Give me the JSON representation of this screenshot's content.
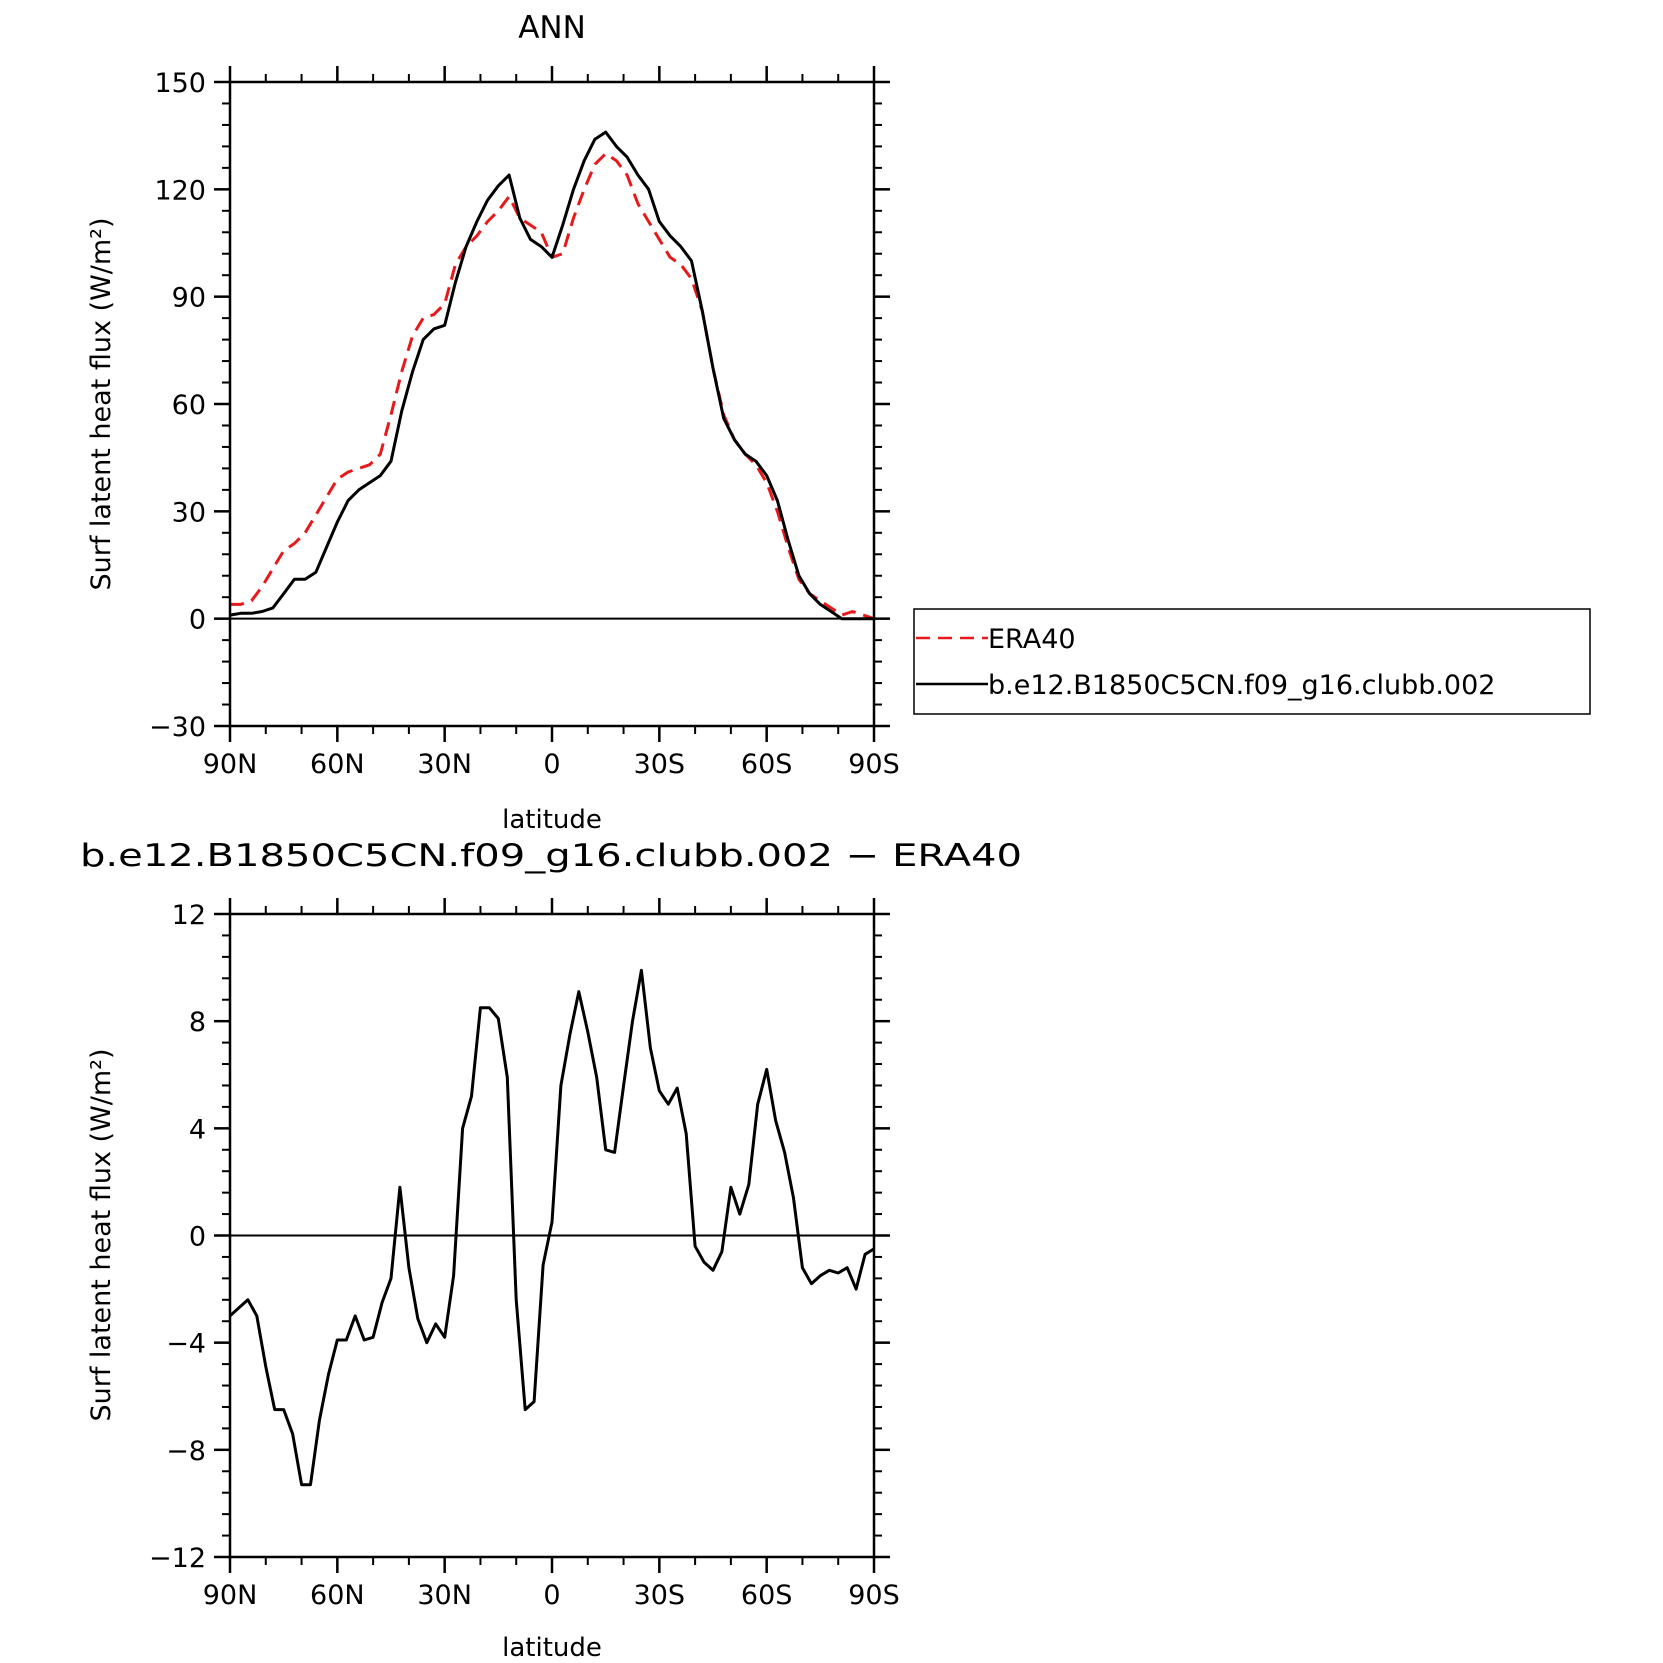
{
  "chart_data": [
    {
      "type": "line",
      "title": "ANN",
      "xlabel": "latitude",
      "ylabel": "Surf latent heat flux (W/m²)",
      "xlim": [
        90,
        -90
      ],
      "ylim": [
        -30,
        150
      ],
      "xticks": [
        90,
        60,
        30,
        0,
        -30,
        -60,
        -90
      ],
      "xticklabels": [
        "90N",
        "60N",
        "30N",
        "0",
        "30S",
        "60S",
        "90S"
      ],
      "yticks": [
        -30,
        0,
        30,
        60,
        90,
        120,
        150
      ],
      "yticklabels": [
        "−30",
        "0",
        "30",
        "60",
        "90",
        "120",
        "150"
      ],
      "legend_position": "right",
      "series": [
        {
          "name": "ERA40",
          "color": "#e8191b",
          "dash": "dashed",
          "x": [
            90,
            87,
            84,
            81,
            78,
            75,
            72,
            69,
            66,
            63,
            60,
            57,
            54,
            51,
            48,
            45,
            42,
            39,
            36,
            33,
            30,
            27,
            24,
            21,
            18,
            15,
            12,
            9,
            6,
            3,
            0,
            -3,
            -6,
            -9,
            -12,
            -15,
            -18,
            -21,
            -24,
            -27,
            -30,
            -33,
            -36,
            -39,
            -42,
            -45,
            -48,
            -51,
            -54,
            -57,
            -60,
            -63,
            -66,
            -69,
            -72,
            -75,
            -78,
            -81,
            -84,
            -87,
            -90
          ],
          "y": [
            4,
            4,
            5,
            9,
            14,
            19,
            21,
            24,
            29,
            34,
            39,
            41,
            42,
            43,
            46,
            57,
            69,
            79,
            84,
            85,
            88,
            99,
            104,
            107,
            111,
            114,
            118,
            112,
            110,
            108,
            101,
            102,
            112,
            120,
            127,
            130,
            128,
            124,
            116,
            111,
            106,
            101,
            99,
            95,
            86,
            70,
            57,
            50,
            46,
            43,
            38,
            30,
            20,
            11,
            7,
            5,
            3,
            1,
            2,
            1,
            0
          ]
        },
        {
          "name": "b.e12.B1850C5CN.f09_g16.clubb.002",
          "color": "#000000",
          "dash": "solid",
          "x": [
            90,
            87,
            84,
            81,
            78,
            75,
            72,
            69,
            66,
            63,
            60,
            57,
            54,
            51,
            48,
            45,
            42,
            39,
            36,
            33,
            30,
            27,
            24,
            21,
            18,
            15,
            12,
            9,
            6,
            3,
            0,
            -3,
            -6,
            -9,
            -12,
            -15,
            -18,
            -21,
            -24,
            -27,
            -30,
            -33,
            -36,
            -39,
            -42,
            -45,
            -48,
            -51,
            -54,
            -57,
            -60,
            -63,
            -66,
            -69,
            -72,
            -75,
            -78,
            -81,
            -84,
            -87,
            -90
          ],
          "y": [
            1,
            1.5,
            1.5,
            2,
            3,
            7,
            11,
            11,
            13,
            20,
            27,
            33,
            36,
            38,
            40,
            44,
            58,
            69,
            78,
            81,
            82,
            94,
            104,
            111,
            117,
            121,
            124,
            112,
            106,
            104,
            101,
            110,
            120,
            128,
            134,
            136,
            132,
            129,
            124,
            120,
            111,
            107,
            104,
            100,
            86,
            70,
            56,
            50,
            46,
            44,
            40,
            33,
            22,
            12,
            7,
            4,
            2,
            0,
            0,
            0,
            0
          ]
        }
      ]
    },
    {
      "type": "line",
      "title": "b.e12.B1850C5CN.f09_g16.clubb.002 − ERA40",
      "xlabel": "latitude",
      "ylabel": "Surf latent heat flux (W/m²)",
      "xlim": [
        90,
        -90
      ],
      "ylim": [
        -12,
        12
      ],
      "xticks": [
        90,
        60,
        30,
        0,
        -30,
        -60,
        -90
      ],
      "xticklabels": [
        "90N",
        "60N",
        "30N",
        "0",
        "30S",
        "60S",
        "90S"
      ],
      "yticks": [
        -12,
        -8,
        -4,
        0,
        4,
        8,
        12
      ],
      "yticklabels": [
        "−12",
        "−8",
        "−4",
        "0",
        "4",
        "8",
        "12"
      ],
      "series": [
        {
          "color": "#000000",
          "dash": "solid",
          "x": [
            90,
            87.5,
            85,
            82.5,
            80,
            77.5,
            75,
            72.5,
            70,
            67.5,
            65,
            62.5,
            60,
            57.5,
            55,
            52.5,
            50,
            47.5,
            45,
            42.5,
            40,
            37.5,
            35,
            32.5,
            30,
            27.5,
            25,
            22.5,
            20,
            17.5,
            15,
            12.5,
            10,
            7.5,
            5,
            2.5,
            0,
            -2.5,
            -5,
            -7.5,
            -10,
            -12.5,
            -15,
            -17.5,
            -20,
            -22.5,
            -25,
            -27.5,
            -30,
            -32.5,
            -35,
            -37.5,
            -40,
            -42.5,
            -45,
            -47.5,
            -50,
            -52.5,
            -55,
            -57.5,
            -60,
            -62.5,
            -65,
            -67.5,
            -70,
            -72.5,
            -75,
            -77.5,
            -80,
            -82.5,
            -85,
            -87.5,
            -90
          ],
          "y": [
            -3.0,
            -2.7,
            -2.4,
            -3.0,
            -4.9,
            -6.5,
            -6.5,
            -7.4,
            -9.3,
            -9.3,
            -6.9,
            -5.2,
            -3.9,
            -3.9,
            -3.0,
            -3.9,
            -3.8,
            -2.5,
            -1.6,
            1.8,
            -1.2,
            -3.1,
            -4.0,
            -3.3,
            -3.8,
            -1.5,
            4.0,
            5.2,
            8.5,
            8.5,
            8.1,
            5.9,
            -2.4,
            -6.5,
            -6.2,
            -1.1,
            0.5,
            5.6,
            7.5,
            9.1,
            7.6,
            5.9,
            3.2,
            3.1,
            5.6,
            8.0,
            9.9,
            7.0,
            5.4,
            4.9,
            5.5,
            3.8,
            -0.4,
            -1.0,
            -1.3,
            -0.6,
            1.8,
            0.8,
            1.9,
            4.9,
            6.2,
            4.3,
            3.1,
            1.4,
            -1.2,
            -1.8,
            -1.5,
            -1.3,
            -1.4,
            -1.2,
            -2.0,
            -0.7,
            -0.5
          ]
        }
      ]
    }
  ]
}
